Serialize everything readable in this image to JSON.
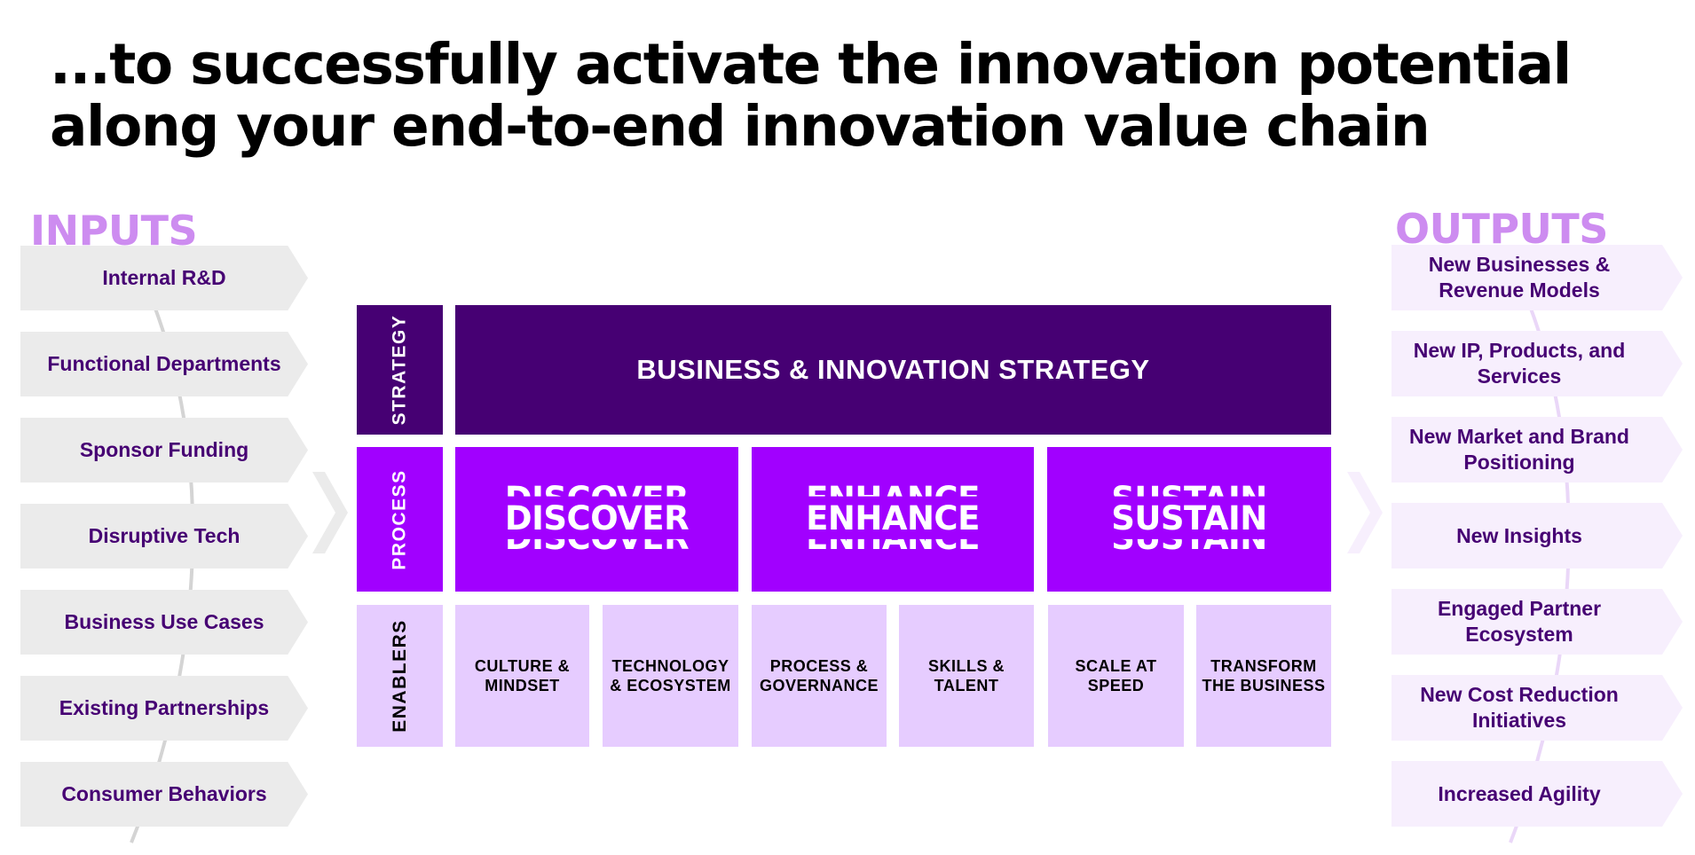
{
  "title": {
    "line1": "...to successfully activate the innovation potential",
    "line2": "along your end-to-end innovation value chain"
  },
  "inputs": {
    "heading": "INPUTS",
    "items": [
      "Internal R&D",
      "Functional Departments",
      "Sponsor Funding",
      "Disruptive Tech",
      "Business Use Cases",
      "Existing Partnerships",
      "Consumer Behaviors"
    ]
  },
  "outputs": {
    "heading": "OUTPUTS",
    "items": [
      "New Businesses & Revenue Models",
      "New IP, Products, and Services",
      "New Market and Brand Positioning",
      "New Insights",
      "Engaged Partner Ecosystem",
      "New Cost Reduction Initiatives",
      "Increased Agility"
    ]
  },
  "framework": {
    "row_labels": {
      "strategy": "STRATEGY",
      "process": "PROCESS",
      "enablers": "ENABLERS"
    },
    "strategy": "BUSINESS & INNOVATION STRATEGY",
    "process": [
      "DISCOVER",
      "ENHANCE",
      "SUSTAIN"
    ],
    "enablers": [
      "CULTURE & MINDSET",
      "TECHNOLOGY & ECOSYSTEM",
      "PROCESS & GOVERNANCE",
      "SKILLS & TALENT",
      "SCALE AT SPEED",
      "TRANSFORM THE BUSINESS"
    ]
  },
  "colors": {
    "dark_purple": "#460073",
    "core_purple": "#a100ff",
    "light_purple": "#e6ccff",
    "heading_purple": "#cd8cf0",
    "input_grey": "#ebebeb",
    "output_tint": "#f7effd"
  }
}
